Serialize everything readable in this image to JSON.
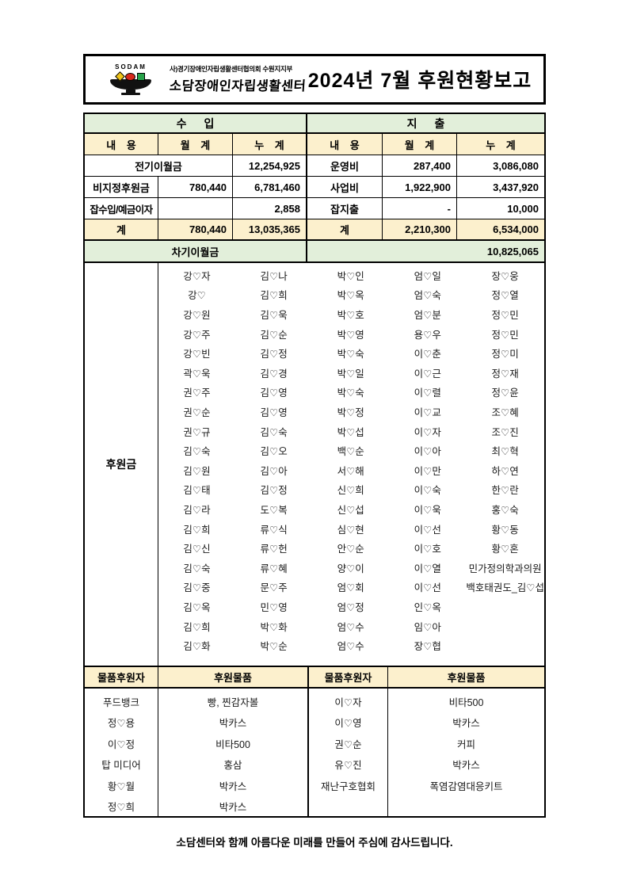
{
  "header": {
    "brand": "SODAM",
    "org_small": "사)경기장애인자립생활센터협의회 수원지지부",
    "org_name": "소담장애인자립생활센터",
    "title": "2024년 7월 후원현황보고"
  },
  "colors": {
    "section_green": "#e2efda",
    "header_cream": "#fcf0cd",
    "logo_yellow": "#f0c419",
    "logo_red": "#d8291c",
    "logo_green": "#27a24a"
  },
  "finance": {
    "income_header": "수 입",
    "expense_header": "지 출",
    "col_content": "내 용",
    "col_monthly": "월 계",
    "col_cumulative": "누 계",
    "income_rows": [
      {
        "label": "전기이월금",
        "monthly": "",
        "cumulative": "12,254,925"
      },
      {
        "label": "비지정후원금",
        "monthly": "780,440",
        "cumulative": "6,781,460"
      },
      {
        "label": "잡수입/예금이자",
        "monthly": "",
        "cumulative": "2,858"
      }
    ],
    "income_total": {
      "label": "계",
      "monthly": "780,440",
      "cumulative": "13,035,365"
    },
    "expense_rows": [
      {
        "label": "운영비",
        "monthly": "287,400",
        "cumulative": "3,086,080"
      },
      {
        "label": "사업비",
        "monthly": "1,922,900",
        "cumulative": "3,437,920"
      },
      {
        "label": "잡지출",
        "monthly": "-",
        "cumulative": "10,000"
      }
    ],
    "expense_total": {
      "label": "계",
      "monthly": "2,210,300",
      "cumulative": "6,534,000"
    },
    "carryover_label": "차기이월금",
    "carryover_amount": "10,825,065"
  },
  "donations": {
    "section_label": "후원금",
    "columns": [
      [
        "강♡자",
        "강♡",
        "강♡원",
        "강♡주",
        "강♡빈",
        "곽♡욱",
        "권♡주",
        "권♡순",
        "권♡규",
        "김♡숙",
        "김♡원",
        "김♡태",
        "김♡라",
        "김♡희",
        "김♡신",
        "김♡숙",
        "김♡중",
        "김♡옥",
        "김♡희",
        "김♡화"
      ],
      [
        "김♡나",
        "김♡희",
        "김♡욱",
        "김♡순",
        "김♡정",
        "김♡경",
        "김♡영",
        "김♡영",
        "김♡숙",
        "김♡오",
        "김♡아",
        "김♡정",
        "도♡복",
        "류♡식",
        "류♡헌",
        "류♡혜",
        "문♡주",
        "민♡영",
        "박♡화",
        "박♡순"
      ],
      [
        "박♡인",
        "박♡옥",
        "박♡호",
        "박♡영",
        "박♡숙",
        "박♡일",
        "박♡숙",
        "박♡정",
        "박♡섭",
        "백♡순",
        "서♡해",
        "신♡희",
        "신♡섭",
        "심♡현",
        "안♡순",
        "양♡이",
        "엄♡회",
        "엄♡정",
        "엄♡수",
        "엄♡수"
      ],
      [
        "엄♡일",
        "엄♡숙",
        "엄♡분",
        "용♡우",
        "이♡춘",
        "이♡근",
        "이♡렬",
        "이♡교",
        "이♡자",
        "이♡아",
        "이♡만",
        "이♡숙",
        "이♡욱",
        "이♡선",
        "이♡호",
        "이♡열",
        "이♡선",
        "인♡옥",
        "임♡아",
        "장♡협"
      ],
      [
        "장♡웅",
        "정♡열",
        "정♡민",
        "정♡민",
        "정♡미",
        "정♡재",
        "정♡윤",
        "조♡혜",
        "조♡진",
        "최♡혁",
        "하♡연",
        "한♡란",
        "홍♡숙",
        "황♡동",
        "황♡혼",
        "민가정의학과의원",
        "백호태권도_김♡섭"
      ]
    ]
  },
  "goods": {
    "donor_header": "물품후원자",
    "item_header": "후원물품",
    "left": [
      {
        "donor": "푸드뱅크",
        "item": "빵, 찐감자볼"
      },
      {
        "donor": "정♡용",
        "item": "박카스"
      },
      {
        "donor": "이♡정",
        "item": "비타500"
      },
      {
        "donor": "탑 미디어",
        "item": "홍삼"
      },
      {
        "donor": "황♡월",
        "item": "박카스"
      },
      {
        "donor": "정♡희",
        "item": "박카스"
      }
    ],
    "right": [
      {
        "donor": "이♡자",
        "item": "비타500"
      },
      {
        "donor": "이♡영",
        "item": "박카스"
      },
      {
        "donor": "권♡순",
        "item": "커피"
      },
      {
        "donor": "유♡진",
        "item": "박카스"
      },
      {
        "donor": "재난구호협회",
        "item": "폭염감염대응키트"
      }
    ]
  },
  "footer": {
    "message": "소담센터와 함께 아름다운 미래를 만들어 주심에 감사드립니다."
  }
}
